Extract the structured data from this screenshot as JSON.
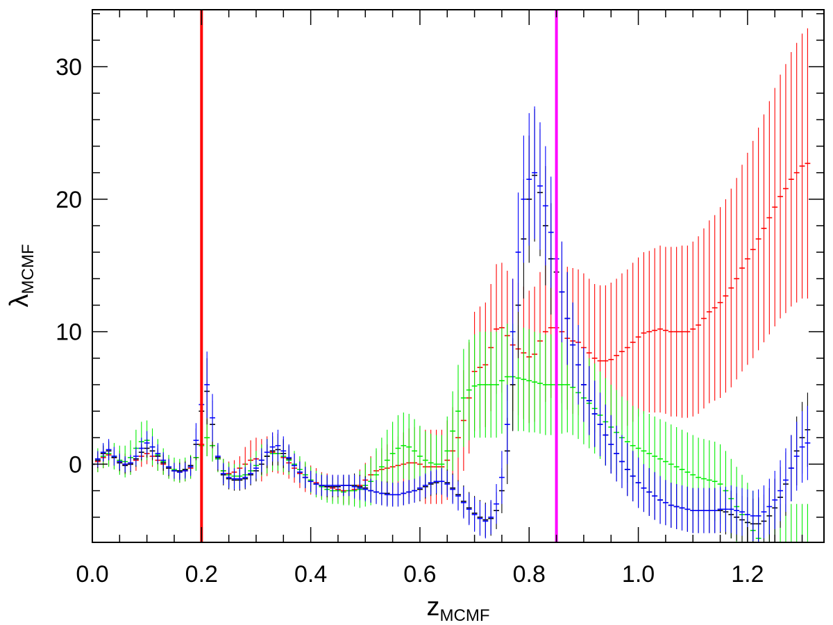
{
  "chart_data": {
    "type": "scatter",
    "title": "",
    "xlabel": {
      "main": "z",
      "sub": "MCMF"
    },
    "ylabel": {
      "main": "λ",
      "sub": "MCMF"
    },
    "xlim": [
      0.0,
      1.34
    ],
    "ylim": [
      -5.9,
      34.3
    ],
    "xticks": [
      0.0,
      0.2,
      0.4,
      0.6,
      0.8,
      1.0,
      1.2
    ],
    "xtick_labels": [
      "0.0",
      "0.2",
      "0.4",
      "0.6",
      "0.8",
      "1.0",
      "1.2"
    ],
    "yticks": [
      0,
      10,
      20,
      30
    ],
    "ytick_labels": [
      "0",
      "10",
      "20",
      "30"
    ],
    "grid": false,
    "legend": "none",
    "vertical_lines": [
      {
        "x": 0.2,
        "color": "#ff0000"
      },
      {
        "x": 0.85,
        "color": "#ff00ff"
      }
    ],
    "series": [
      {
        "color": "#ff0000",
        "x_start": 0.0,
        "x_step": 0.01,
        "values": [
          0.0,
          0.2,
          0.5,
          0.7,
          0.5,
          0.2,
          0.0,
          0.0,
          0.3,
          0.6,
          0.8,
          0.6,
          0.3,
          0.0,
          -0.3,
          -0.5,
          -0.6,
          -0.5,
          -0.3,
          0.5,
          1.5,
          2.0,
          1.4,
          0.4,
          -0.5,
          -0.7,
          -0.6,
          -0.3,
          0.0,
          0.3,
          0.4,
          0.3,
          0.6,
          0.9,
          0.8,
          0.5,
          0.1,
          -0.3,
          -0.7,
          -1.0,
          -1.2,
          -1.4,
          -1.6,
          -1.7,
          -1.8,
          -1.9,
          -2.0,
          -2.0,
          -1.9,
          -1.6,
          -1.2,
          -0.8,
          -0.5,
          -0.4,
          -0.3,
          -0.2,
          -0.1,
          0.0,
          0.1,
          0.1,
          0.0,
          -0.2,
          -0.2,
          -0.2,
          -0.2,
          0.3,
          1.0,
          2.0,
          3.3,
          5.0,
          7.0,
          7.3,
          7.5,
          8.8,
          10.2,
          10.3,
          9.7,
          9.0,
          8.7,
          8.4,
          8.1,
          8.3,
          9.3,
          10.0,
          10.3,
          10.3,
          10.0,
          9.5,
          9.3,
          9.2,
          8.8,
          8.4,
          8.0,
          7.8,
          7.8,
          7.9,
          8.2,
          8.5,
          8.8,
          9.2,
          9.6,
          9.9,
          10.0,
          10.1,
          10.2,
          10.1,
          10.0,
          10.0,
          10.0,
          10.0,
          10.2,
          10.5,
          11.0,
          11.5,
          11.8,
          12.2,
          12.7,
          13.3,
          14.0,
          14.8,
          15.5,
          16.2,
          17.0,
          17.8,
          18.6,
          19.4,
          20.2,
          20.8,
          21.5,
          22.0,
          22.5,
          22.7
        ],
        "errors": [
          0.8,
          0.8,
          0.8,
          0.8,
          0.8,
          0.8,
          0.8,
          0.8,
          0.8,
          0.8,
          0.8,
          0.8,
          0.8,
          0.8,
          0.8,
          0.8,
          0.8,
          0.8,
          0.8,
          1.0,
          1.2,
          1.4,
          1.2,
          1.0,
          0.9,
          0.9,
          0.9,
          0.9,
          1.3,
          1.5,
          1.6,
          1.6,
          1.5,
          1.5,
          1.5,
          1.3,
          1.2,
          1.1,
          1.1,
          1.1,
          1.1,
          1.1,
          1.0,
          1.0,
          1.0,
          1.0,
          1.0,
          1.0,
          1.1,
          1.2,
          1.3,
          1.4,
          1.5,
          1.6,
          1.8,
          2.0,
          2.2,
          2.4,
          2.6,
          2.7,
          2.8,
          2.8,
          2.8,
          2.8,
          2.8,
          3.0,
          3.3,
          3.6,
          3.8,
          4.2,
          4.5,
          4.6,
          4.7,
          4.8,
          4.9,
          4.9,
          4.9,
          5.0,
          5.0,
          5.0,
          5.0,
          5.1,
          5.2,
          5.3,
          5.3,
          5.4,
          5.4,
          5.4,
          5.5,
          5.5,
          5.6,
          5.6,
          5.6,
          5.7,
          5.7,
          5.8,
          5.8,
          5.9,
          5.9,
          6.0,
          6.0,
          6.1,
          6.1,
          6.2,
          6.3,
          6.3,
          6.4,
          6.4,
          6.5,
          6.5,
          6.6,
          6.7,
          6.8,
          6.9,
          7.0,
          7.2,
          7.3,
          7.5,
          7.6,
          7.8,
          8.0,
          8.2,
          8.4,
          8.6,
          8.8,
          9.0,
          9.2,
          9.4,
          9.6,
          9.8,
          10.0,
          10.2
        ]
      },
      {
        "color": "#00ee00",
        "x_start": 0.0,
        "x_step": 0.01,
        "values": [
          0.0,
          0.3,
          0.6,
          0.8,
          0.6,
          0.3,
          0.2,
          0.5,
          1.2,
          1.7,
          1.8,
          1.3,
          0.7,
          0.2,
          -0.2,
          -0.4,
          -0.5,
          -0.4,
          -0.2,
          0.5,
          1.4,
          2.0,
          1.4,
          0.4,
          -0.5,
          -0.8,
          -0.9,
          -0.9,
          -0.8,
          -0.5,
          -0.1,
          0.3,
          0.6,
          0.8,
          0.8,
          0.6,
          0.3,
          0.0,
          -0.4,
          -0.8,
          -1.2,
          -1.5,
          -1.7,
          -1.9,
          -2.0,
          -2.0,
          -2.1,
          -2.0,
          -2.0,
          -1.9,
          -1.6,
          -1.3,
          -0.8,
          -0.2,
          0.3,
          0.8,
          1.2,
          1.4,
          1.3,
          1.0,
          0.6,
          0.3,
          0.1,
          0.0,
          0.0,
          1.0,
          2.5,
          4.0,
          5.0,
          5.6,
          5.9,
          6.0,
          6.0,
          6.0,
          6.0,
          6.3,
          6.6,
          6.6,
          6.5,
          6.4,
          6.3,
          6.2,
          6.1,
          6.0,
          6.0,
          6.0,
          6.0,
          6.0,
          5.8,
          5.4,
          5.0,
          4.6,
          4.2,
          3.7,
          3.2,
          2.8,
          2.4,
          2.0,
          1.7,
          1.4,
          1.2,
          1.0,
          0.8,
          0.6,
          0.4,
          0.2,
          0.0,
          -0.2,
          -0.4,
          -0.6,
          -0.8,
          -1.0,
          -1.1,
          -1.2,
          -1.3,
          -1.5,
          -2.0,
          -2.6,
          -3.2,
          -3.8,
          -4.4,
          -5.0,
          -5.6,
          -6.0,
          -6.0,
          -6.0,
          -6.0,
          -6.0,
          -6.0,
          -6.0,
          -6.0,
          -6.0
        ],
        "errors": [
          0.9,
          0.9,
          0.9,
          1.0,
          1.0,
          1.1,
          1.2,
          1.3,
          1.4,
          1.5,
          1.5,
          1.4,
          1.2,
          1.0,
          0.9,
          0.9,
          0.9,
          0.9,
          0.9,
          1.0,
          1.2,
          1.4,
          1.2,
          1.0,
          0.9,
          0.9,
          0.9,
          0.9,
          0.9,
          1.0,
          1.1,
          1.2,
          1.3,
          1.3,
          1.3,
          1.2,
          1.1,
          1.0,
          1.0,
          1.0,
          1.0,
          1.0,
          1.0,
          1.0,
          1.0,
          1.0,
          1.0,
          1.1,
          1.2,
          1.4,
          1.6,
          1.8,
          2.0,
          2.2,
          2.3,
          2.4,
          2.5,
          2.5,
          2.5,
          2.4,
          2.3,
          2.2,
          2.2,
          2.2,
          2.2,
          2.6,
          3.0,
          3.5,
          3.7,
          3.8,
          3.9,
          4.0,
          4.0,
          4.0,
          4.0,
          4.0,
          4.0,
          4.0,
          4.0,
          3.9,
          3.9,
          3.8,
          3.8,
          3.8,
          3.8,
          3.7,
          3.7,
          3.6,
          3.6,
          3.5,
          3.5,
          3.4,
          3.4,
          3.3,
          3.3,
          3.2,
          3.2,
          3.1,
          3.1,
          3.0,
          3.0,
          3.0,
          3.0,
          3.0,
          3.0,
          3.0,
          3.0,
          3.0,
          3.0,
          3.0,
          3.0,
          3.0,
          3.0,
          3.0,
          3.0,
          3.0,
          3.0,
          3.0,
          3.0,
          3.0,
          3.0,
          3.0,
          3.0,
          3.0,
          3.0,
          3.0,
          3.0,
          3.0,
          3.0,
          3.0,
          3.0,
          3.0
        ]
      },
      {
        "color": "#000000",
        "x_start": 0.0,
        "x_step": 0.01,
        "values": [
          0.0,
          0.3,
          0.8,
          1.0,
          0.5,
          0.1,
          -0.1,
          0.0,
          0.4,
          0.9,
          1.2,
          1.0,
          0.6,
          0.1,
          -0.3,
          -0.5,
          -0.5,
          -0.4,
          -0.1,
          1.5,
          4.0,
          5.5,
          3.0,
          0.5,
          -0.8,
          -1.1,
          -1.2,
          -1.2,
          -1.1,
          -0.8,
          -0.5,
          0.0,
          0.6,
          1.0,
          1.1,
          0.8,
          0.4,
          -0.1,
          -0.6,
          -1.0,
          -1.3,
          -1.5,
          -1.6,
          -1.7,
          -1.7,
          -1.7,
          -1.6,
          -1.6,
          -1.6,
          -1.7,
          -1.8,
          -2.0,
          -2.1,
          -2.2,
          -2.2,
          -2.3,
          -2.3,
          -2.2,
          -2.1,
          -2.0,
          -1.9,
          -1.7,
          -1.5,
          -1.4,
          -1.3,
          -1.4,
          -1.8,
          -2.3,
          -2.8,
          -3.3,
          -3.7,
          -4.0,
          -4.2,
          -4.1,
          -3.5,
          -2.0,
          1.0,
          6.0,
          12.0,
          17.0,
          20.0,
          21.8,
          20.5,
          18.0,
          15.5,
          14.5,
          13.0,
          11.0,
          9.0,
          7.5,
          6.0,
          4.8,
          3.8,
          3.0,
          2.2,
          1.5,
          0.8,
          0.2,
          -0.4,
          -0.9,
          -1.4,
          -1.8,
          -2.1,
          -2.4,
          -2.7,
          -2.9,
          -3.1,
          -3.2,
          -3.3,
          -3.4,
          -3.5,
          -3.5,
          -3.5,
          -3.5,
          -3.5,
          -3.5,
          -3.6,
          -3.8,
          -4.0,
          -4.2,
          -4.4,
          -4.5,
          -4.5,
          -4.3,
          -3.9,
          -3.3,
          -2.5,
          -1.5,
          -0.3,
          1.0,
          2.0,
          2.6
        ],
        "errors": [
          0.6,
          0.6,
          0.6,
          0.7,
          0.6,
          0.6,
          0.6,
          0.6,
          0.6,
          0.6,
          0.7,
          0.7,
          0.6,
          0.6,
          0.6,
          0.6,
          0.6,
          0.6,
          0.7,
          1.2,
          2.0,
          2.5,
          1.8,
          1.0,
          0.8,
          0.8,
          0.8,
          0.8,
          0.8,
          0.8,
          0.8,
          0.8,
          0.9,
          1.1,
          1.2,
          1.1,
          1.0,
          0.9,
          0.8,
          0.8,
          0.8,
          0.8,
          0.8,
          0.8,
          0.8,
          0.8,
          0.8,
          0.8,
          0.9,
          0.9,
          0.9,
          0.9,
          0.9,
          0.9,
          0.9,
          0.9,
          0.9,
          0.9,
          0.9,
          0.9,
          0.9,
          0.9,
          0.9,
          0.9,
          1.0,
          1.0,
          1.1,
          1.1,
          1.2,
          1.2,
          1.3,
          1.3,
          1.3,
          1.3,
          1.4,
          1.7,
          2.5,
          3.5,
          4.0,
          4.5,
          4.8,
          5.0,
          4.8,
          4.5,
          4.2,
          4.0,
          3.8,
          3.5,
          3.2,
          3.0,
          2.8,
          2.6,
          2.5,
          2.4,
          2.3,
          2.2,
          2.1,
          2.0,
          2.0,
          1.9,
          1.9,
          1.8,
          1.8,
          1.8,
          1.8,
          1.7,
          1.7,
          1.7,
          1.7,
          1.7,
          1.7,
          1.7,
          1.7,
          1.7,
          1.7,
          1.7,
          1.7,
          1.8,
          1.8,
          1.8,
          1.9,
          1.9,
          2.0,
          2.0,
          2.1,
          2.2,
          2.3,
          2.4,
          2.5,
          2.6,
          2.7,
          2.8
        ]
      },
      {
        "color": "#0000ff",
        "x_start": 0.0,
        "x_step": 0.01,
        "values": [
          0.0,
          0.4,
          0.9,
          1.1,
          0.6,
          0.2,
          0.0,
          0.1,
          0.6,
          1.2,
          1.6,
          1.3,
          0.8,
          0.3,
          -0.2,
          -0.5,
          -0.6,
          -0.5,
          -0.2,
          1.8,
          4.5,
          6.0,
          3.5,
          0.6,
          -0.7,
          -1.0,
          -1.1,
          -1.1,
          -1.0,
          -0.7,
          -0.3,
          0.3,
          0.9,
          1.3,
          1.4,
          1.0,
          0.5,
          -0.1,
          -0.6,
          -1.0,
          -1.3,
          -1.5,
          -1.6,
          -1.6,
          -1.6,
          -1.6,
          -1.6,
          -1.6,
          -1.7,
          -1.8,
          -1.9,
          -2.0,
          -2.1,
          -2.2,
          -2.3,
          -2.3,
          -2.3,
          -2.2,
          -2.1,
          -2.0,
          -1.8,
          -1.6,
          -1.4,
          -1.3,
          -1.3,
          -1.5,
          -1.9,
          -2.4,
          -2.9,
          -3.4,
          -3.8,
          -4.1,
          -4.3,
          -4.0,
          -3.0,
          -1.0,
          3.0,
          10.0,
          16.0,
          20.0,
          21.5,
          22.0,
          21.0,
          19.5,
          17.5,
          15.5,
          13.0,
          11.0,
          9.0,
          7.5,
          6.0,
          4.8,
          3.8,
          3.0,
          2.2,
          1.5,
          0.8,
          0.2,
          -0.4,
          -0.9,
          -1.4,
          -1.8,
          -2.1,
          -2.4,
          -2.7,
          -2.9,
          -3.1,
          -3.2,
          -3.3,
          -3.4,
          -3.5,
          -3.5,
          -3.5,
          -3.5,
          -3.5,
          -3.4,
          -3.4,
          -3.4,
          -3.5,
          -3.6,
          -3.8,
          -3.9,
          -3.9,
          -3.6,
          -3.2,
          -2.7,
          -2.0,
          -1.2,
          -0.3,
          0.6,
          1.3,
          1.6
        ],
        "errors": [
          0.6,
          0.6,
          0.7,
          0.8,
          0.7,
          0.6,
          0.6,
          0.6,
          0.7,
          0.8,
          0.9,
          0.8,
          0.7,
          0.6,
          0.6,
          0.6,
          0.6,
          0.6,
          0.7,
          1.3,
          2.2,
          2.5,
          1.8,
          1.0,
          0.8,
          0.8,
          0.8,
          0.8,
          0.8,
          0.8,
          0.8,
          0.9,
          1.0,
          1.1,
          1.2,
          1.1,
          1.0,
          0.9,
          0.8,
          0.8,
          0.8,
          0.8,
          0.8,
          0.8,
          0.8,
          0.8,
          0.8,
          0.8,
          0.9,
          0.9,
          0.9,
          0.9,
          0.9,
          0.9,
          0.9,
          0.9,
          0.9,
          0.9,
          0.9,
          0.9,
          0.9,
          0.9,
          0.9,
          0.9,
          1.0,
          1.0,
          1.1,
          1.1,
          1.2,
          1.2,
          1.3,
          1.3,
          1.3,
          1.3,
          1.5,
          2.0,
          3.0,
          4.0,
          4.5,
          4.8,
          5.0,
          5.0,
          4.8,
          4.5,
          4.2,
          4.0,
          3.8,
          3.5,
          3.2,
          3.0,
          2.8,
          2.6,
          2.5,
          2.4,
          2.3,
          2.2,
          2.1,
          2.0,
          2.0,
          1.9,
          1.9,
          1.8,
          1.8,
          1.8,
          1.8,
          1.7,
          1.7,
          1.7,
          1.7,
          1.7,
          1.7,
          1.7,
          1.7,
          1.7,
          1.7,
          1.7,
          1.7,
          1.8,
          1.8,
          1.8,
          1.9,
          1.9,
          2.0,
          2.0,
          2.1,
          2.2,
          2.3,
          2.4,
          2.5,
          2.6,
          2.7,
          2.8
        ]
      }
    ]
  }
}
